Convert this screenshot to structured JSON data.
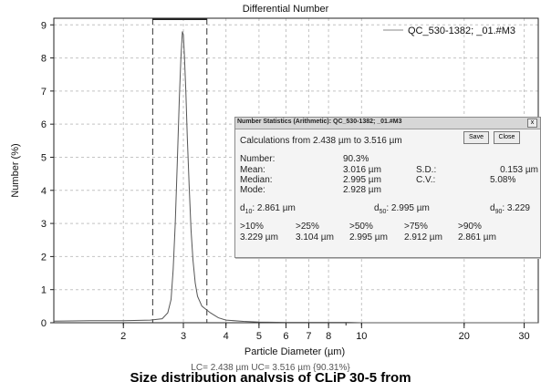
{
  "chart_data": {
    "type": "line",
    "title": "Differential Number",
    "xlabel": "Particle Diameter (µm)",
    "ylabel": "Number (%)",
    "x_scale": "log",
    "xlim": [
      1.25,
      33
    ],
    "ylim": [
      0,
      9.2
    ],
    "x_ticks_major": [
      2,
      3,
      4,
      5,
      6,
      7,
      8,
      10,
      20,
      30
    ],
    "y_ticks": [
      0,
      1,
      2,
      3,
      4,
      5,
      6,
      7,
      8,
      9
    ],
    "grid": true,
    "legend_position": "top-right",
    "series": [
      {
        "name": "QC_530-1382; _01.#M3",
        "color": "#888888",
        "x": [
          1.25,
          1.6,
          2.0,
          2.4,
          2.6,
          2.7,
          2.76,
          2.8,
          2.84,
          2.88,
          2.92,
          2.95,
          2.98,
          3.0,
          3.02,
          3.05,
          3.08,
          3.12,
          3.16,
          3.2,
          3.25,
          3.3,
          3.4,
          3.5,
          3.6,
          3.8,
          4.0,
          4.5,
          5,
          6,
          7,
          8,
          9,
          10,
          15,
          20,
          33
        ],
        "y": [
          0.05,
          0.06,
          0.06,
          0.08,
          0.12,
          0.3,
          0.7,
          1.6,
          3.0,
          4.9,
          6.8,
          8.0,
          8.8,
          8.7,
          8.1,
          7.0,
          5.6,
          4.1,
          2.8,
          1.9,
          1.2,
          0.8,
          0.5,
          0.4,
          0.3,
          0.15,
          0.08,
          0.04,
          0.02,
          0.01,
          0.01,
          0.01,
          0.01,
          0.0,
          0.0,
          0.0,
          0.0
        ]
      }
    ],
    "limits": {
      "lc": 2.438,
      "uc": 3.516,
      "style": "dashed-vertical",
      "top_bar": true
    }
  },
  "footer": {
    "limits_text": "LC= 2.438 µm  UC= 3.516 µm {90.31%}",
    "cutoff_text": "Size distribution analysis of CLiP 30-5 from"
  },
  "dialog": {
    "title": "Number Statistics (Arithmetic): QC_530-1382; _01.#M3",
    "close_glyph": "x",
    "save_label": "Save",
    "close_label": "Close",
    "calc_range": "Calculations from 2.438 µm to 3.516 µm",
    "number_label": "Number:",
    "number_value": "90.3%",
    "mean_label": "Mean:",
    "mean_value": "3.016 µm",
    "sd_label": "S.D.:",
    "sd_value": "0.153 µm",
    "median_label": "Median:",
    "median_value": "2.995 µm",
    "cv_label": "C.V.:",
    "cv_value": "5.08%",
    "mode_label": "Mode:",
    "mode_value": "2.928 µm",
    "d_symbol": "d",
    "d10_sub": "10",
    "d10_value": ":  2.861 µm",
    "d50_sub": "50",
    "d50_value": ":  2.995 µm",
    "d90_sub": "90",
    "d90_value": ":  3.229",
    "pct_headers": [
      ">10%",
      ">25%",
      ">50%",
      ">75%",
      ">90%"
    ],
    "pct_values": [
      "3.229 µm",
      "3.104 µm",
      "2.995 µm",
      "2.912 µm",
      "2.861 µm"
    ]
  }
}
